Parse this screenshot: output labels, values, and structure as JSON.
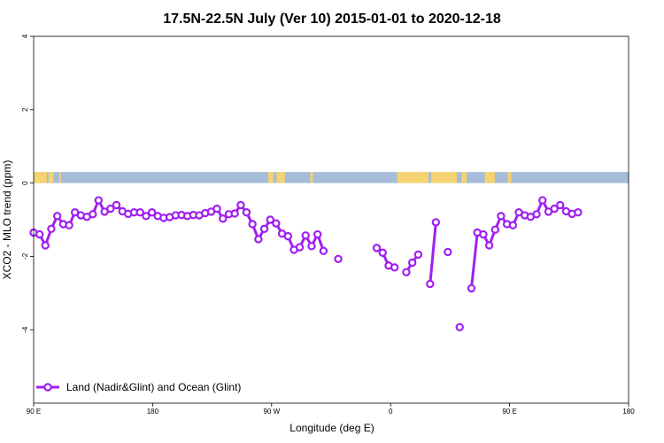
{
  "colors": {
    "series": "#a020f0",
    "land": "#f5d370",
    "ocean": "#a6bcd9",
    "axis": "#000000"
  },
  "chart_data": {
    "type": "line",
    "title": "17.5N-22.5N July (Ver 10)   2015-01-01 to 2020-12-18",
    "xlabel": "Longitude (deg E)",
    "ylabel": "XCO2 - MLO trend (ppm)",
    "xlim": [
      90,
      450
    ],
    "ylim": [
      -6,
      4
    ],
    "y_ticks": [
      -4,
      -2,
      0,
      2,
      4
    ],
    "x_ticks": [
      {
        "value": 90,
        "label": "90 E"
      },
      {
        "value": 180,
        "label": "180"
      },
      {
        "value": 270,
        "label": "90 W"
      },
      {
        "value": 360,
        "label": "0"
      },
      {
        "value": 450,
        "label": "90 E"
      },
      {
        "value": 540,
        "label": "180"
      }
    ],
    "legend": {
      "position": "bottom-left",
      "label": "Land (Nadir&Glint) and Ocean (Glint)"
    },
    "series": [
      {
        "name": "Land (Nadir&Glint) and Ocean (Glint)",
        "segments": [
          [
            [
              90,
              -1.35
            ],
            [
              93.6,
              -1.4
            ],
            [
              97.1,
              -1.7
            ],
            [
              100.7,
              -1.25
            ],
            [
              104.3,
              -0.9
            ],
            [
              107.9,
              -1.12
            ],
            [
              111.5,
              -1.15
            ],
            [
              115.0,
              -0.8
            ],
            [
              118.6,
              -0.88
            ],
            [
              122.2,
              -0.92
            ],
            [
              125.8,
              -0.85
            ],
            [
              129.3,
              -0.47
            ],
            [
              132.9,
              -0.78
            ],
            [
              136.5,
              -0.7
            ],
            [
              140.1,
              -0.6
            ],
            [
              143.7,
              -0.77
            ],
            [
              147.2,
              -0.84
            ],
            [
              150.8,
              -0.8
            ],
            [
              154.4,
              -0.8
            ],
            [
              158.0,
              -0.9
            ],
            [
              161.6,
              -0.8
            ],
            [
              165.1,
              -0.9
            ],
            [
              168.7,
              -0.95
            ],
            [
              172.3,
              -0.93
            ],
            [
              175.9,
              -0.88
            ],
            [
              179.5,
              -0.87
            ],
            [
              183.0,
              -0.9
            ],
            [
              186.6,
              -0.87
            ],
            [
              190.2,
              -0.88
            ],
            [
              193.8,
              -0.82
            ],
            [
              197.4,
              -0.78
            ],
            [
              200.9,
              -0.7
            ],
            [
              204.5,
              -0.97
            ],
            [
              208.1,
              -0.85
            ],
            [
              211.7,
              -0.83
            ],
            [
              215.3,
              -0.6
            ],
            [
              218.8,
              -0.8
            ],
            [
              222.4,
              -1.12
            ],
            [
              226.0,
              -1.53
            ],
            [
              229.6,
              -1.25
            ],
            [
              233.2,
              -1.0
            ],
            [
              236.7,
              -1.1
            ],
            [
              240.3,
              -1.38
            ],
            [
              243.9,
              -1.45
            ],
            [
              247.5,
              -1.82
            ],
            [
              251.0,
              -1.75
            ],
            [
              254.6,
              -1.43
            ],
            [
              258.2,
              -1.72
            ],
            [
              261.8,
              -1.4
            ],
            [
              265.4,
              -1.85
            ]
          ],
          [
            [
              274.3,
              -2.07
            ]
          ],
          [
            [
              297.6,
              -1.77
            ],
            [
              301.2,
              -1.9
            ],
            [
              304.8,
              -2.25
            ],
            [
              308.4,
              -2.3
            ]
          ],
          [
            [
              315.5,
              -2.43
            ],
            [
              319.1,
              -2.17
            ],
            [
              322.7,
              -1.95
            ]
          ],
          [
            [
              329.9,
              -2.75
            ],
            [
              333.4,
              -1.07
            ]
          ],
          [
            [
              340.6,
              -1.88
            ]
          ],
          [
            [
              347.8,
              -3.93
            ]
          ],
          [
            [
              354.9,
              -2.87
            ],
            [
              358.5,
              -1.35
            ],
            [
              362.1,
              -1.4
            ],
            [
              365.7,
              -1.7
            ],
            [
              369.3,
              -1.27
            ],
            [
              372.8,
              -0.9
            ],
            [
              376.4,
              -1.12
            ],
            [
              380.0,
              -1.15
            ],
            [
              383.6,
              -0.8
            ],
            [
              387.2,
              -0.88
            ],
            [
              390.7,
              -0.92
            ],
            [
              394.3,
              -0.85
            ],
            [
              397.9,
              -0.47
            ],
            [
              401.5,
              -0.78
            ],
            [
              405.1,
              -0.7
            ],
            [
              408.6,
              -0.6
            ],
            [
              412.2,
              -0.77
            ],
            [
              415.8,
              -0.84
            ],
            [
              419.4,
              -0.8
            ]
          ]
        ]
      }
    ]
  }
}
